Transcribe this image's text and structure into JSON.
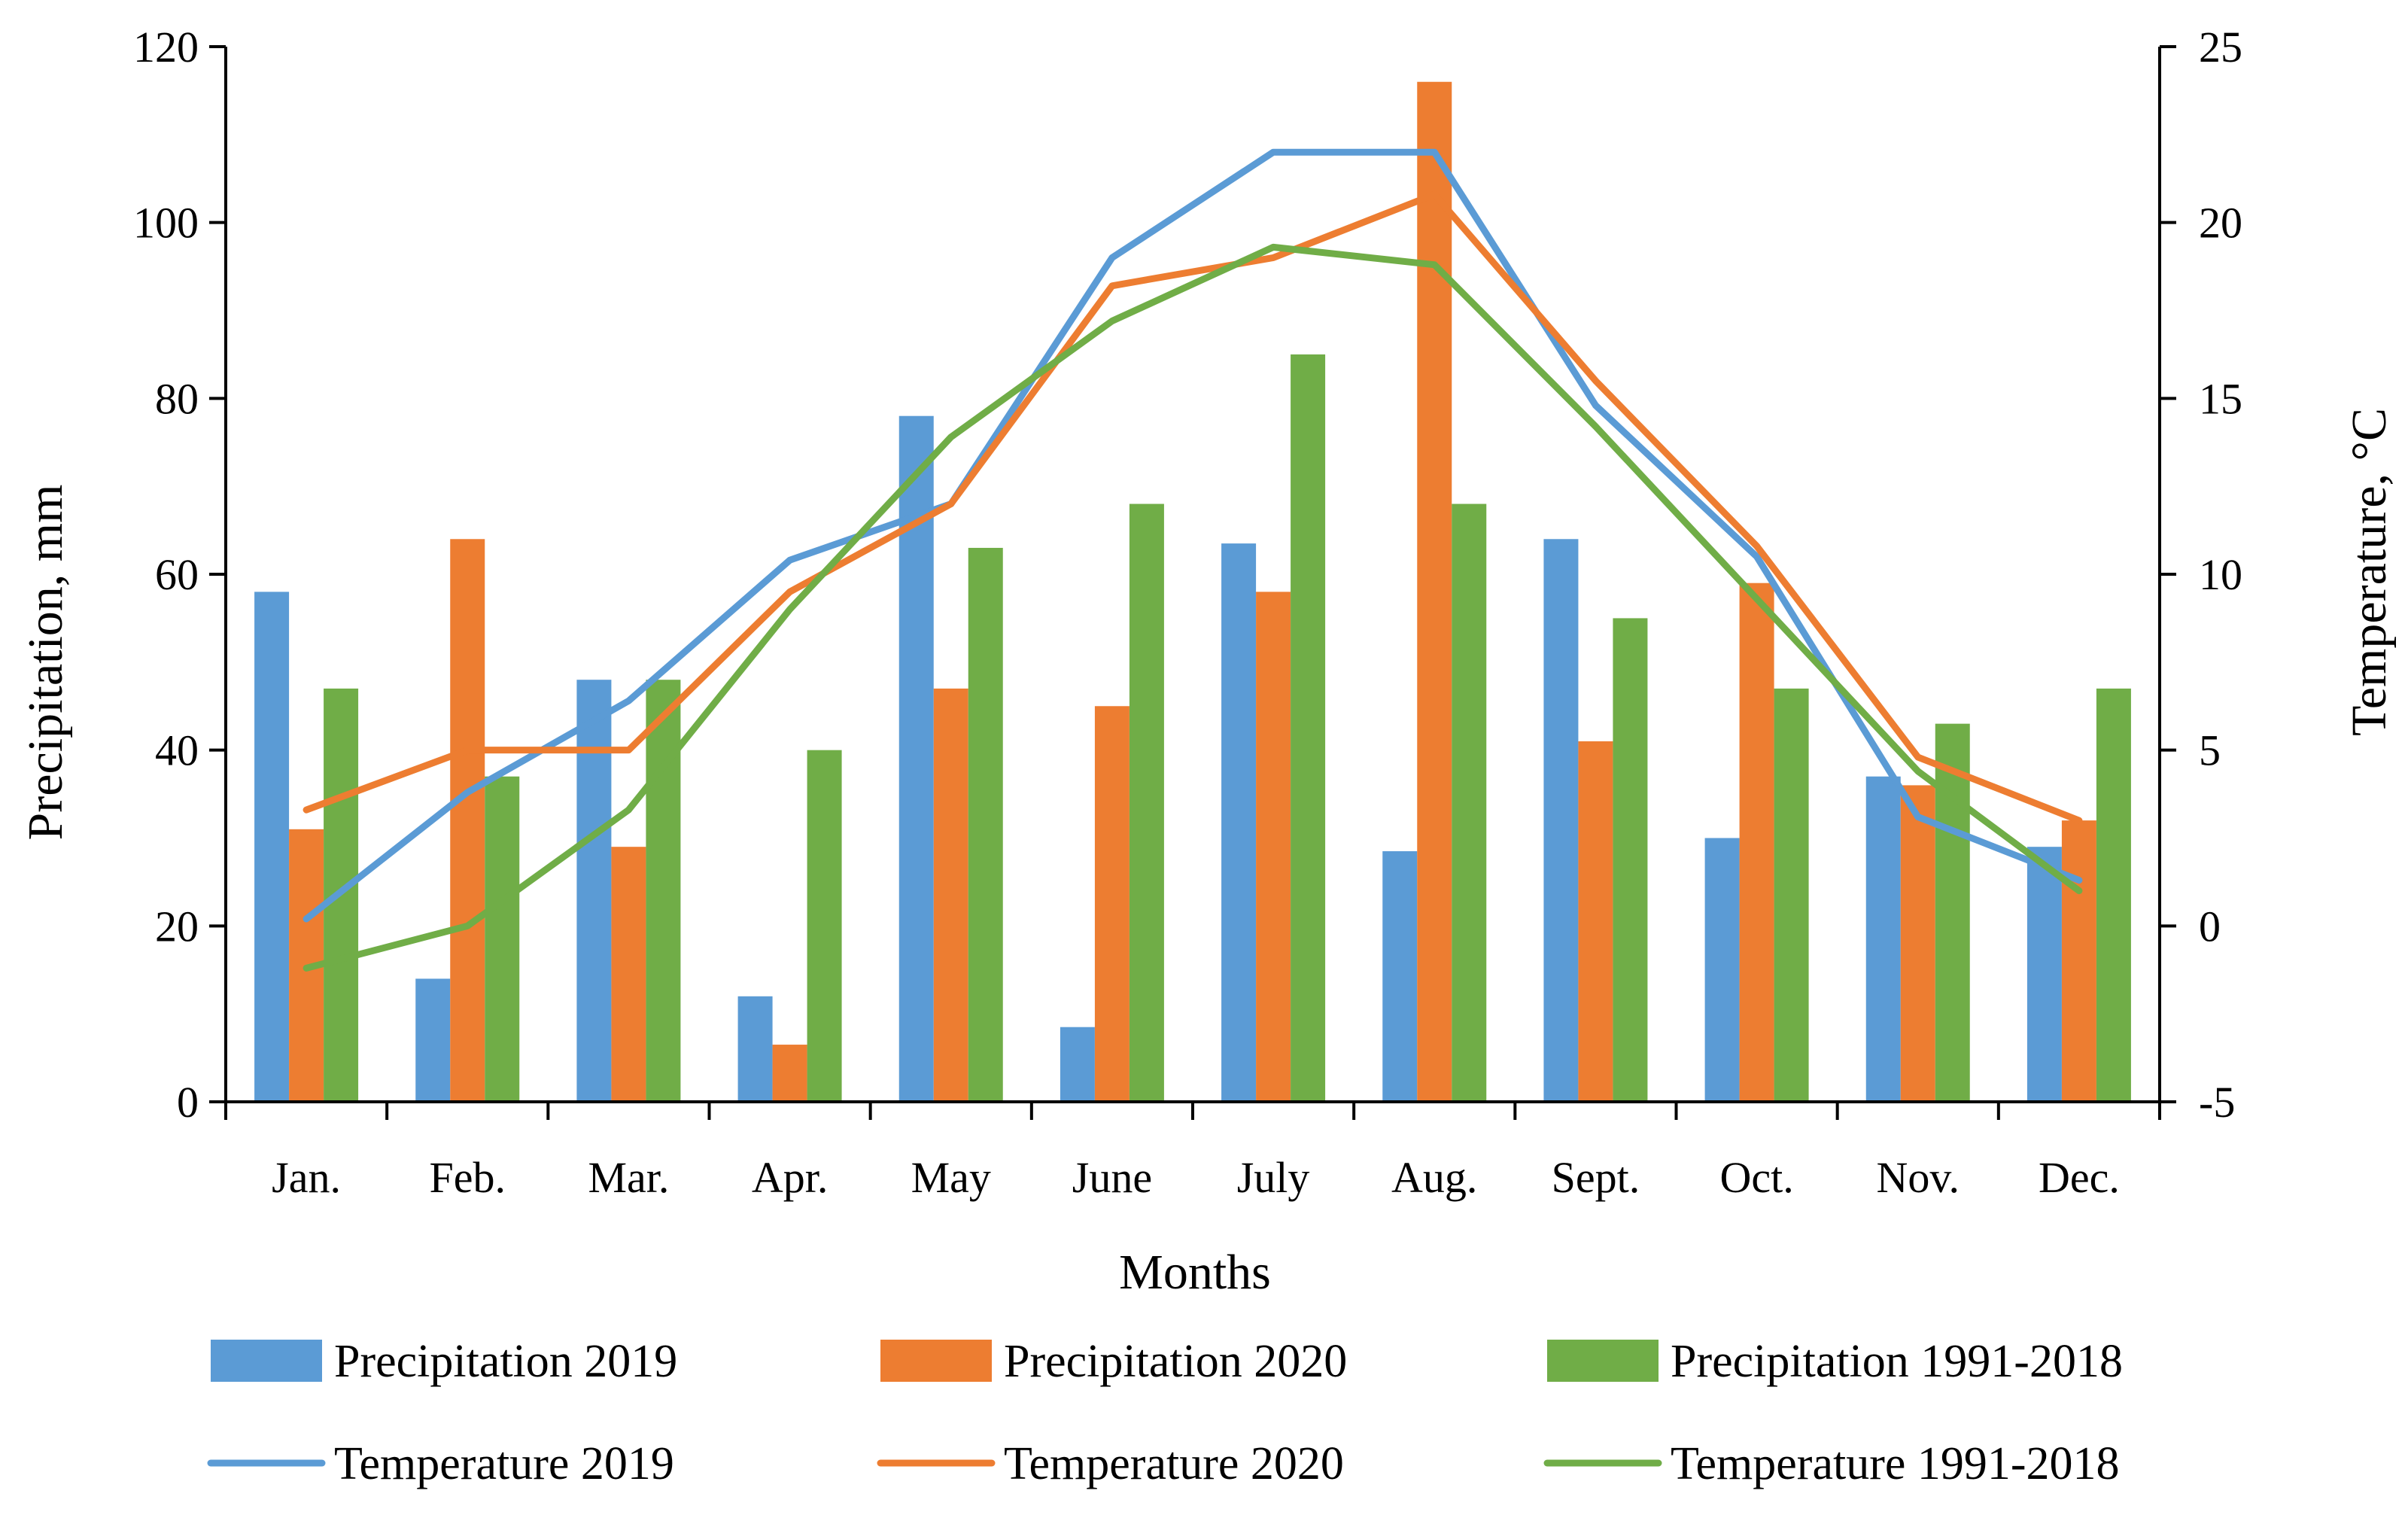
{
  "chart_data": {
    "type": "bar+line",
    "xlabel": "Months",
    "ylabel_left": "Precipitation, mm",
    "ylabel_right": "Temperature, °C",
    "ylim_left": [
      0,
      120
    ],
    "ylim_right": [
      -5,
      25
    ],
    "yticks_left": [
      0,
      20,
      40,
      60,
      80,
      100,
      120
    ],
    "yticks_right": [
      -5,
      0,
      5,
      10,
      15,
      20,
      25
    ],
    "grid": false,
    "legend_position": "bottom",
    "categories": [
      "Jan.",
      "Feb.",
      "Mar.",
      "Apr.",
      "May",
      "June",
      "July",
      "Aug.",
      "Sept.",
      "Oct.",
      "Nov.",
      "Dec."
    ],
    "bar_series": [
      {
        "name": "Precipitation 2019",
        "color": "#5B9BD5",
        "values": [
          58,
          14,
          48,
          12,
          78,
          8.5,
          63.5,
          28.5,
          64,
          30,
          37,
          29
        ]
      },
      {
        "name": "Precipitation 2020",
        "color": "#ED7D31",
        "values": [
          31,
          64,
          29,
          6.5,
          47,
          45,
          58,
          116,
          41,
          59,
          36,
          32
        ]
      },
      {
        "name": "Precipitation 1991-2018",
        "color": "#70AD47",
        "values": [
          47,
          37,
          48,
          40,
          63,
          68,
          85,
          68,
          55,
          47,
          43,
          47
        ]
      }
    ],
    "line_series": [
      {
        "name": "Temperature 2019",
        "color": "#5B9BD5",
        "values": [
          0.2,
          3.8,
          6.4,
          10.4,
          12.0,
          19.0,
          22.0,
          22.0,
          14.8,
          10.5,
          3.1,
          1.3
        ]
      },
      {
        "name": "Temperature 2020",
        "color": "#ED7D31",
        "values": [
          3.3,
          5.0,
          5.0,
          9.5,
          12.0,
          18.2,
          19.0,
          20.8,
          15.5,
          10.8,
          4.8,
          3.0
        ]
      },
      {
        "name": "Temperature 1991-2018",
        "color": "#70AD47",
        "values": [
          -1.2,
          0.0,
          3.3,
          9.0,
          13.9,
          17.2,
          19.3,
          18.8,
          14.2,
          9.3,
          4.4,
          1.0
        ]
      }
    ]
  }
}
